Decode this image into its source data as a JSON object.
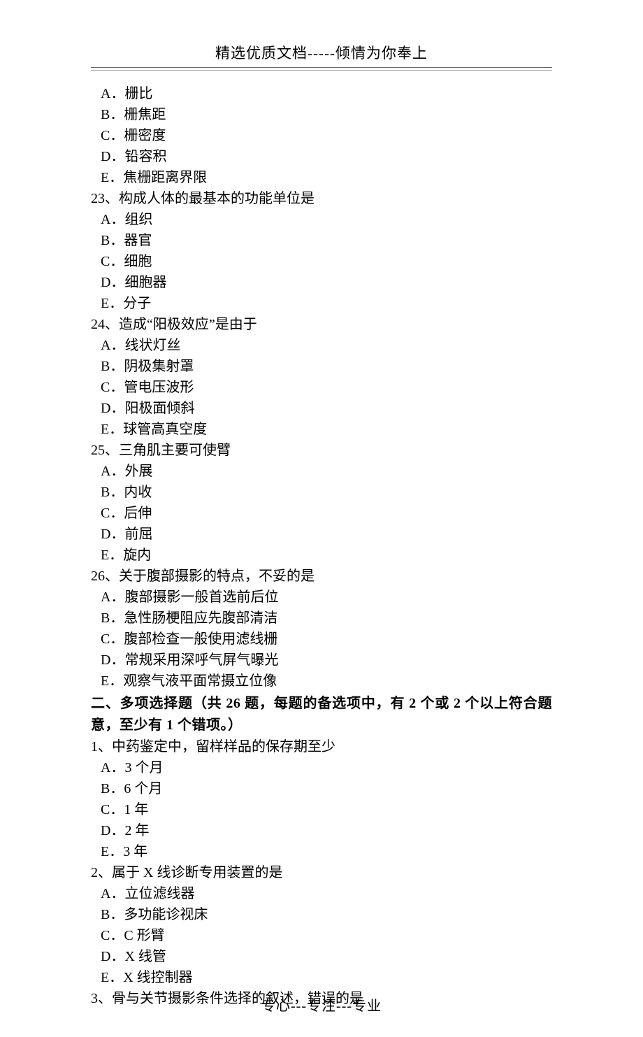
{
  "header": "精选优质文档-----倾情为你奉上",
  "footer": "专心---专注---专业",
  "q22_options": {
    "A": "A．栅比",
    "B": "B．栅焦距",
    "C": "C．栅密度",
    "D": "D．铅容积",
    "E": "E．焦栅距离界限"
  },
  "q23": {
    "stem": "23、构成人体的最基本的功能单位是",
    "A": "A．组织",
    "B": "B．器官",
    "C": "C．细胞",
    "D": "D．细胞器",
    "E": "E．分子"
  },
  "q24": {
    "stem": "24、造成“阳极效应”是由于",
    "A": "A．线状灯丝",
    "B": "B．阴极集射罩",
    "C": "C．管电压波形",
    "D": "D．阳极面倾斜",
    "E": "E．球管高真空度"
  },
  "q25": {
    "stem": "25、三角肌主要可使臂",
    "A": "A．外展",
    "B": "B．内收",
    "C": "C．后伸",
    "D": "D．前屈",
    "E": "E．旋内"
  },
  "q26": {
    "stem": "26、关于腹部摄影的特点，不妥的是",
    "A": "A．腹部摄影一般首选前后位",
    "B": "B．急性肠梗阻应先腹部清洁",
    "C": "C．腹部检查一般使用滤线栅",
    "D": "D．常规采用深呼气屏气曝光",
    "E": "E．观察气液平面常摄立位像"
  },
  "section2_title": "二、多项选择题（共 26 题，每题的备选项中，有 2 个或 2 个以上符合题意，至少有 1 个错项。）",
  "mq1": {
    "stem": "1、中药鉴定中，留样样品的保存期至少",
    "A": "A．3 个月",
    "B": "B．6 个月",
    "C": "C．1 年",
    "D": "D．2 年",
    "E": "E．3 年"
  },
  "mq2": {
    "stem": "2、属于 X 线诊断专用装置的是",
    "A": "A．立位滤线器",
    "B": "B．多功能诊视床",
    "C": "C．C 形臂",
    "D": "D．X 线管",
    "E": "E．X 线控制器"
  },
  "mq3": {
    "stem": "3、骨与关节摄影条件选择的叙述，错误的是"
  }
}
